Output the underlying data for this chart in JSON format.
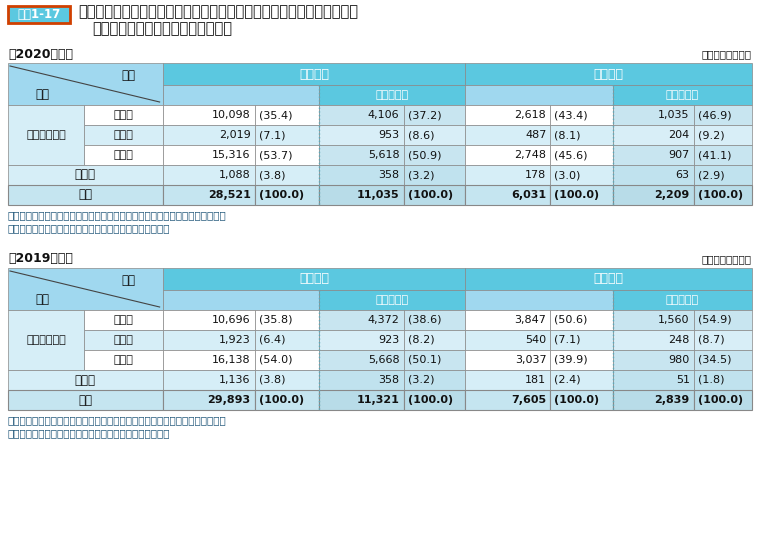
{
  "title_label": "資料1-17",
  "title_main_1": "国家公務員採用一般職試験（大卒程度試験）の国・公・私立別出身大学",
  "title_main_2": "（含大学院）別申込者数・合格者数",
  "year2020": {
    "label": "（2020年度）",
    "unit": "（単位：人、％）",
    "rows": [
      {
        "koumoku": "国　立",
        "shinsei": "10,098",
        "shinsei_pct": "(35.4)",
        "uchi_shinsei": "4,106",
        "uchi_shinsei_pct": "(37.2)",
        "goukaku": "2,618",
        "goukaku_pct": "(43.4)",
        "uchi_goukaku": "1,035",
        "uchi_goukaku_pct": "(46.9)"
      },
      {
        "koumoku": "公　立",
        "shinsei": "2,019",
        "shinsei_pct": "(7.1)",
        "uchi_shinsei": "953",
        "uchi_shinsei_pct": "(8.6)",
        "goukaku": "487",
        "goukaku_pct": "(8.1)",
        "uchi_goukaku": "204",
        "uchi_goukaku_pct": "(9.2)"
      },
      {
        "koumoku": "私　立",
        "shinsei": "15,316",
        "shinsei_pct": "(53.7)",
        "uchi_shinsei": "5,618",
        "uchi_shinsei_pct": "(50.9)",
        "goukaku": "2,748",
        "goukaku_pct": "(45.6)",
        "uchi_goukaku": "907",
        "uchi_goukaku_pct": "(41.1)"
      },
      {
        "koumoku": "その他",
        "shinsei": "1,088",
        "shinsei_pct": "(3.8)",
        "uchi_shinsei": "358",
        "uchi_shinsei_pct": "(3.2)",
        "goukaku": "178",
        "goukaku_pct": "(3.0)",
        "uchi_goukaku": "63",
        "uchi_goukaku_pct": "(2.9)"
      },
      {
        "koumoku": "合計",
        "shinsei": "28,521",
        "shinsei_pct": "(100.0)",
        "uchi_shinsei": "11,035",
        "uchi_shinsei_pct": "(100.0)",
        "goukaku": "6,031",
        "goukaku_pct": "(100.0)",
        "uchi_goukaku": "2,209",
        "uchi_goukaku_pct": "(100.0)"
      }
    ],
    "notes": [
      "（注）１（　）内は、申込者総数又は合格者総数に対する割合（％）を示す。",
      "　　２「その他」は、短大・高専、外国の大学等である。"
    ]
  },
  "year2019": {
    "label": "（2019年度）",
    "unit": "（単位：人、％）",
    "rows": [
      {
        "koumoku": "国　立",
        "shinsei": "10,696",
        "shinsei_pct": "(35.8)",
        "uchi_shinsei": "4,372",
        "uchi_shinsei_pct": "(38.6)",
        "goukaku": "3,847",
        "goukaku_pct": "(50.6)",
        "uchi_goukaku": "1,560",
        "uchi_goukaku_pct": "(54.9)"
      },
      {
        "koumoku": "公　立",
        "shinsei": "1,923",
        "shinsei_pct": "(6.4)",
        "uchi_shinsei": "923",
        "uchi_shinsei_pct": "(8.2)",
        "goukaku": "540",
        "goukaku_pct": "(7.1)",
        "uchi_goukaku": "248",
        "uchi_goukaku_pct": "(8.7)"
      },
      {
        "koumoku": "私　立",
        "shinsei": "16,138",
        "shinsei_pct": "(54.0)",
        "uchi_shinsei": "5,668",
        "uchi_shinsei_pct": "(50.1)",
        "goukaku": "3,037",
        "goukaku_pct": "(39.9)",
        "uchi_goukaku": "980",
        "uchi_goukaku_pct": "(34.5)"
      },
      {
        "koumoku": "その他",
        "shinsei": "1,136",
        "shinsei_pct": "(3.8)",
        "uchi_shinsei": "358",
        "uchi_shinsei_pct": "(3.2)",
        "goukaku": "181",
        "goukaku_pct": "(2.4)",
        "uchi_goukaku": "51",
        "uchi_goukaku_pct": "(1.8)"
      },
      {
        "koumoku": "合計",
        "shinsei": "29,893",
        "shinsei_pct": "(100.0)",
        "uchi_shinsei": "11,321",
        "uchi_shinsei_pct": "(100.0)",
        "goukaku": "7,605",
        "goukaku_pct": "(100.0)",
        "uchi_goukaku": "2,839",
        "uchi_goukaku_pct": "(100.0)"
      }
    ],
    "notes": [
      "（注）１（　）内は、申込者総数又は合格者総数に対する割合（％）を示す。",
      "　　２「その他」は、短大・高専、外国の大学等である。"
    ]
  },
  "colors": {
    "header_blue": "#5BC8E0",
    "subheader_blue": "#A0D8EF",
    "row_light": "#D6EEF7",
    "row_white": "#FFFFFF",
    "total_row_bg": "#C5E5F0",
    "total_uchi_bg": "#B8DCE8",
    "title_box_bg": "#5BC8E0",
    "title_box_border": "#E05A00",
    "note_blue": "#1A5276",
    "text_dark": "#1A1A1A",
    "border_gray": "#999999",
    "dashed_color": "#5AAABB"
  }
}
